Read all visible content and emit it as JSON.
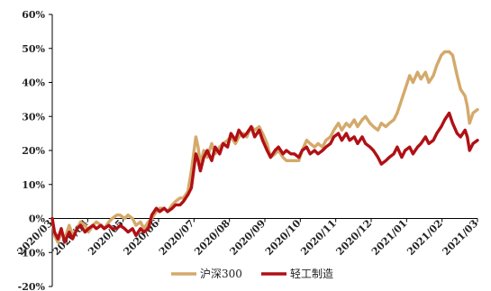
{
  "chart_data": {
    "type": "line",
    "title": "",
    "xlabel": "",
    "ylabel": "",
    "ylim": [
      -20,
      60
    ],
    "y_ticks": [
      "60%",
      "50%",
      "40%",
      "30%",
      "20%",
      "10%",
      "0%",
      "-10%",
      "-20%"
    ],
    "x_ticks": [
      "2020/03",
      "2020/04",
      "2020/05",
      "2020/06",
      "2020/07",
      "2020/08",
      "2020/09",
      "2020/10",
      "2020/11",
      "2020/12",
      "2021/01",
      "2021/02",
      "2021/03"
    ],
    "grid": false,
    "legend": "bottom",
    "x_start": "2020-03-01",
    "series": [
      {
        "name": "沪深300",
        "color": "#d4a96a",
        "points": [
          [
            "2020-03-01",
            0
          ],
          [
            "2020-03-03",
            -5
          ],
          [
            "2020-03-06",
            -7
          ],
          [
            "2020-03-09",
            -4
          ],
          [
            "2020-03-12",
            -6
          ],
          [
            "2020-03-16",
            -2
          ],
          [
            "2020-03-19",
            -5
          ],
          [
            "2020-03-23",
            -3
          ],
          [
            "2020-03-26",
            -1
          ],
          [
            "2020-03-30",
            -2
          ],
          [
            "2020-04-02",
            -4
          ],
          [
            "2020-04-06",
            -2
          ],
          [
            "2020-04-09",
            -1
          ],
          [
            "2020-04-13",
            -2
          ],
          [
            "2020-04-16",
            -3
          ],
          [
            "2020-04-20",
            -1
          ],
          [
            "2020-04-23",
            0
          ],
          [
            "2020-04-27",
            1
          ],
          [
            "2020-04-30",
            1
          ],
          [
            "2020-05-04",
            0
          ],
          [
            "2020-05-07",
            1
          ],
          [
            "2020-05-11",
            0
          ],
          [
            "2020-05-14",
            -2
          ],
          [
            "2020-05-18",
            -1
          ],
          [
            "2020-05-21",
            -3
          ],
          [
            "2020-05-25",
            -1
          ],
          [
            "2020-05-28",
            0
          ],
          [
            "2020-06-01",
            2
          ],
          [
            "2020-06-04",
            3
          ],
          [
            "2020-06-08",
            3
          ],
          [
            "2020-06-11",
            2
          ],
          [
            "2020-06-15",
            4
          ],
          [
            "2020-06-18",
            5
          ],
          [
            "2020-06-22",
            6
          ],
          [
            "2020-06-25",
            6
          ],
          [
            "2020-06-29",
            8
          ],
          [
            "2020-07-02",
            14
          ],
          [
            "2020-07-04",
            19
          ],
          [
            "2020-07-06",
            24
          ],
          [
            "2020-07-08",
            21
          ],
          [
            "2020-07-10",
            16
          ],
          [
            "2020-07-13",
            20
          ],
          [
            "2020-07-16",
            18
          ],
          [
            "2020-07-20",
            22
          ],
          [
            "2020-07-23",
            19
          ],
          [
            "2020-07-27",
            21
          ],
          [
            "2020-07-30",
            22
          ],
          [
            "2020-08-03",
            23
          ],
          [
            "2020-08-06",
            24
          ],
          [
            "2020-08-10",
            22
          ],
          [
            "2020-08-13",
            24
          ],
          [
            "2020-08-17",
            25
          ],
          [
            "2020-08-20",
            24
          ],
          [
            "2020-08-24",
            27
          ],
          [
            "2020-08-27",
            26
          ],
          [
            "2020-08-31",
            27
          ],
          [
            "2020-09-03",
            25
          ],
          [
            "2020-09-07",
            22
          ],
          [
            "2020-09-10",
            18
          ],
          [
            "2020-09-14",
            19
          ],
          [
            "2020-09-17",
            20
          ],
          [
            "2020-09-21",
            18
          ],
          [
            "2020-09-24",
            17
          ],
          [
            "2020-09-28",
            17
          ],
          [
            "2020-10-01",
            17
          ],
          [
            "2020-10-05",
            17
          ],
          [
            "2020-10-08",
            20
          ],
          [
            "2020-10-12",
            23
          ],
          [
            "2020-10-15",
            22
          ],
          [
            "2020-10-19",
            21
          ],
          [
            "2020-10-22",
            22
          ],
          [
            "2020-10-26",
            21
          ],
          [
            "2020-10-29",
            23
          ],
          [
            "2020-11-02",
            24
          ],
          [
            "2020-11-05",
            26
          ],
          [
            "2020-11-09",
            28
          ],
          [
            "2020-11-12",
            26
          ],
          [
            "2020-11-16",
            28
          ],
          [
            "2020-11-19",
            27
          ],
          [
            "2020-11-23",
            29
          ],
          [
            "2020-11-26",
            27
          ],
          [
            "2020-11-30",
            29
          ],
          [
            "2020-12-03",
            30
          ],
          [
            "2020-12-07",
            28
          ],
          [
            "2020-12-10",
            27
          ],
          [
            "2020-12-14",
            26
          ],
          [
            "2020-12-17",
            28
          ],
          [
            "2020-12-21",
            27
          ],
          [
            "2020-12-24",
            28
          ],
          [
            "2020-12-28",
            29
          ],
          [
            "2020-12-31",
            31
          ],
          [
            "2021-01-04",
            35
          ],
          [
            "2021-01-07",
            38
          ],
          [
            "2021-01-11",
            42
          ],
          [
            "2021-01-14",
            40
          ],
          [
            "2021-01-18",
            43
          ],
          [
            "2021-01-21",
            41
          ],
          [
            "2021-01-25",
            43
          ],
          [
            "2021-01-28",
            40
          ],
          [
            "2021-02-01",
            42
          ],
          [
            "2021-02-04",
            45
          ],
          [
            "2021-02-08",
            48
          ],
          [
            "2021-02-11",
            49
          ],
          [
            "2021-02-15",
            49
          ],
          [
            "2021-02-18",
            48
          ],
          [
            "2021-02-22",
            42
          ],
          [
            "2021-02-25",
            38
          ],
          [
            "2021-03-01",
            36
          ],
          [
            "2021-03-03",
            33
          ],
          [
            "2021-03-05",
            28
          ],
          [
            "2021-03-08",
            31
          ],
          [
            "2021-03-12",
            32
          ]
        ]
      },
      {
        "name": "轻工制造",
        "color": "#b01015",
        "points": [
          [
            "2020-03-01",
            0
          ],
          [
            "2020-03-03",
            -4
          ],
          [
            "2020-03-06",
            -6
          ],
          [
            "2020-03-09",
            -3
          ],
          [
            "2020-03-12",
            -7
          ],
          [
            "2020-03-16",
            -4
          ],
          [
            "2020-03-19",
            -6
          ],
          [
            "2020-03-23",
            -3
          ],
          [
            "2020-03-26",
            -2
          ],
          [
            "2020-03-30",
            -4
          ],
          [
            "2020-04-02",
            -3
          ],
          [
            "2020-04-06",
            -2
          ],
          [
            "2020-04-09",
            -3
          ],
          [
            "2020-04-13",
            -2
          ],
          [
            "2020-04-16",
            -3
          ],
          [
            "2020-04-20",
            -2
          ],
          [
            "2020-04-23",
            -3
          ],
          [
            "2020-04-27",
            -3
          ],
          [
            "2020-04-30",
            -2
          ],
          [
            "2020-05-04",
            -3
          ],
          [
            "2020-05-07",
            -4
          ],
          [
            "2020-05-11",
            -3
          ],
          [
            "2020-05-14",
            -5
          ],
          [
            "2020-05-18",
            -3
          ],
          [
            "2020-05-21",
            -4
          ],
          [
            "2020-05-25",
            -3
          ],
          [
            "2020-05-28",
            1
          ],
          [
            "2020-06-01",
            3
          ],
          [
            "2020-06-04",
            2
          ],
          [
            "2020-06-08",
            3
          ],
          [
            "2020-06-11",
            2
          ],
          [
            "2020-06-15",
            3
          ],
          [
            "2020-06-18",
            4
          ],
          [
            "2020-06-22",
            4
          ],
          [
            "2020-06-25",
            5
          ],
          [
            "2020-06-29",
            7
          ],
          [
            "2020-07-02",
            9
          ],
          [
            "2020-07-04",
            14
          ],
          [
            "2020-07-06",
            19
          ],
          [
            "2020-07-08",
            17
          ],
          [
            "2020-07-10",
            14
          ],
          [
            "2020-07-13",
            18
          ],
          [
            "2020-07-16",
            20
          ],
          [
            "2020-07-20",
            17
          ],
          [
            "2020-07-23",
            21
          ],
          [
            "2020-07-27",
            19
          ],
          [
            "2020-07-30",
            22
          ],
          [
            "2020-08-03",
            21
          ],
          [
            "2020-08-06",
            25
          ],
          [
            "2020-08-10",
            23
          ],
          [
            "2020-08-13",
            26
          ],
          [
            "2020-08-17",
            24
          ],
          [
            "2020-08-20",
            25
          ],
          [
            "2020-08-24",
            27
          ],
          [
            "2020-08-27",
            24
          ],
          [
            "2020-08-31",
            26
          ],
          [
            "2020-09-03",
            23
          ],
          [
            "2020-09-07",
            20
          ],
          [
            "2020-09-10",
            18
          ],
          [
            "2020-09-14",
            20
          ],
          [
            "2020-09-17",
            21
          ],
          [
            "2020-09-21",
            19
          ],
          [
            "2020-09-24",
            20
          ],
          [
            "2020-09-28",
            19
          ],
          [
            "2020-10-01",
            19
          ],
          [
            "2020-10-05",
            18
          ],
          [
            "2020-10-08",
            20
          ],
          [
            "2020-10-12",
            21
          ],
          [
            "2020-10-15",
            19
          ],
          [
            "2020-10-19",
            20
          ],
          [
            "2020-10-22",
            19
          ],
          [
            "2020-10-26",
            20
          ],
          [
            "2020-10-29",
            21
          ],
          [
            "2020-11-02",
            22
          ],
          [
            "2020-11-05",
            24
          ],
          [
            "2020-11-09",
            25
          ],
          [
            "2020-11-12",
            23
          ],
          [
            "2020-11-16",
            25
          ],
          [
            "2020-11-19",
            23
          ],
          [
            "2020-11-23",
            24
          ],
          [
            "2020-11-26",
            22
          ],
          [
            "2020-11-30",
            24
          ],
          [
            "2020-12-03",
            22
          ],
          [
            "2020-12-07",
            21
          ],
          [
            "2020-12-10",
            20
          ],
          [
            "2020-12-14",
            18
          ],
          [
            "2020-12-17",
            16
          ],
          [
            "2020-12-21",
            17
          ],
          [
            "2020-12-24",
            18
          ],
          [
            "2020-12-28",
            19
          ],
          [
            "2020-12-31",
            21
          ],
          [
            "2021-01-04",
            18
          ],
          [
            "2021-01-07",
            20
          ],
          [
            "2021-01-11",
            21
          ],
          [
            "2021-01-14",
            19
          ],
          [
            "2021-01-18",
            21
          ],
          [
            "2021-01-21",
            22
          ],
          [
            "2021-01-25",
            24
          ],
          [
            "2021-01-28",
            22
          ],
          [
            "2021-02-01",
            23
          ],
          [
            "2021-02-04",
            25
          ],
          [
            "2021-02-08",
            27
          ],
          [
            "2021-02-11",
            29
          ],
          [
            "2021-02-15",
            31
          ],
          [
            "2021-02-18",
            28
          ],
          [
            "2021-02-22",
            25
          ],
          [
            "2021-02-25",
            24
          ],
          [
            "2021-03-01",
            26
          ],
          [
            "2021-03-03",
            24
          ],
          [
            "2021-03-05",
            20
          ],
          [
            "2021-03-08",
            22
          ],
          [
            "2021-03-12",
            23
          ]
        ]
      }
    ]
  }
}
